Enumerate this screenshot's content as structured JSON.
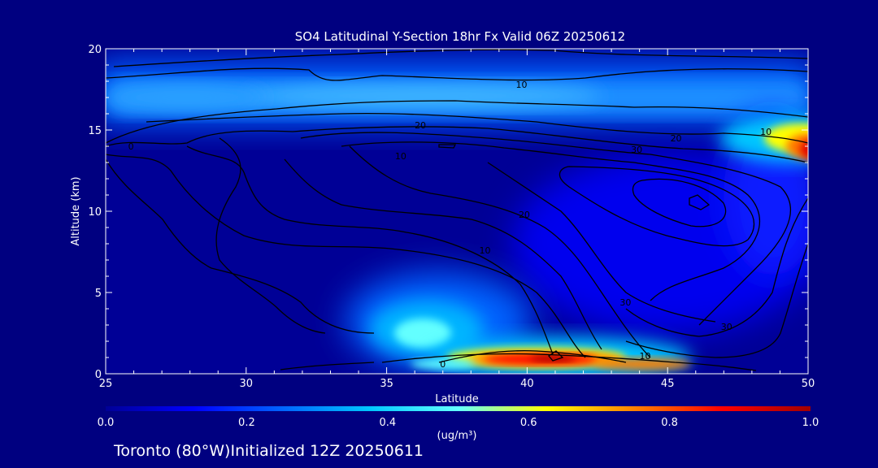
{
  "chart_data": {
    "type": "heatmap",
    "title": "SO4 Latitudinal Y-Section 18hr  Fx Valid 06Z 20250612",
    "xlabel": "Latitude",
    "ylabel": "Altitude (km)",
    "xlim": [
      25,
      50
    ],
    "ylim": [
      0,
      20
    ],
    "x_ticks": [
      "25",
      "30",
      "35",
      "40",
      "45",
      "50"
    ],
    "y_ticks": [
      "0",
      "5",
      "10",
      "15",
      "20"
    ],
    "grid": false,
    "colorbar": {
      "label": "(ug/m³)",
      "range": [
        0.0,
        1.0
      ],
      "tick_labels": [
        "0.0",
        "0.2",
        "0.4",
        "0.6",
        "0.8",
        "1.0"
      ],
      "colors": [
        "#000096",
        "#0000ff",
        "#0064ff",
        "#00c8ff",
        "#64ffff",
        "#ffff00",
        "#ff8000",
        "#ff0000",
        "#a00000"
      ]
    },
    "filled_features": [
      {
        "lat": 25,
        "alt": 17.0,
        "value": 0.22
      },
      {
        "lat": 30,
        "alt": 16.8,
        "value": 0.25
      },
      {
        "lat": 35,
        "alt": 17.4,
        "value": 0.28
      },
      {
        "lat": 40,
        "alt": 17.0,
        "value": 0.24
      },
      {
        "lat": 45,
        "alt": 17.2,
        "value": 0.26
      },
      {
        "lat": 48.5,
        "alt": 14.8,
        "value": 0.55
      },
      {
        "lat": 49.8,
        "alt": 13.8,
        "value": 0.85
      },
      {
        "lat": 35.8,
        "alt": 2.5,
        "value": 0.45
      },
      {
        "lat": 38,
        "alt": 0.8,
        "value": 0.85
      },
      {
        "lat": 41,
        "alt": 0.7,
        "value": 0.95
      },
      {
        "lat": 43.5,
        "alt": 0.5,
        "value": 0.75
      },
      {
        "lat": 46,
        "alt": 10.0,
        "value": 0.12
      },
      {
        "lat": 49,
        "alt": 8.0,
        "value": 0.15
      }
    ],
    "contour_labels": [
      {
        "text": "0",
        "lat": 25.9,
        "alt": 14.0
      },
      {
        "text": "0",
        "lat": 37.0,
        "alt": 0.6
      },
      {
        "text": "10",
        "lat": 39.8,
        "alt": 17.8
      },
      {
        "text": "10",
        "lat": 48.5,
        "alt": 14.9
      },
      {
        "text": "10",
        "lat": 35.5,
        "alt": 13.4
      },
      {
        "text": "10",
        "lat": 38.5,
        "alt": 7.6
      },
      {
        "text": "10",
        "lat": 44.2,
        "alt": 1.1
      },
      {
        "text": "20",
        "lat": 36.2,
        "alt": 15.3
      },
      {
        "text": "20",
        "lat": 45.3,
        "alt": 14.5
      },
      {
        "text": "20",
        "lat": 39.9,
        "alt": 9.8
      },
      {
        "text": "30",
        "lat": 43.9,
        "alt": 13.8
      },
      {
        "text": "30",
        "lat": 43.5,
        "alt": 4.4
      },
      {
        "text": "30",
        "lat": 47.1,
        "alt": 2.9
      }
    ]
  },
  "footer": {
    "text": "Toronto (80°W)Initialized 12Z 20250611"
  }
}
